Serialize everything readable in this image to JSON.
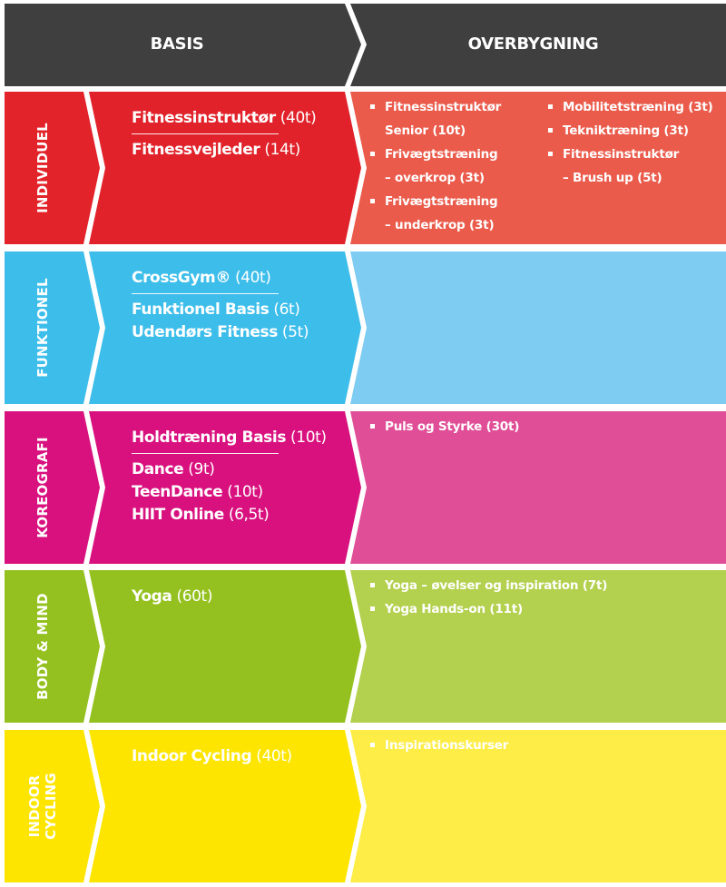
{
  "header": {
    "basis": "BASIS",
    "overbygning": "OVERBYGNING"
  },
  "colors": {
    "header_dark": "#3f3f3f",
    "individuel": [
      "#e2232a",
      "#e1222a",
      "#ea5b4b"
    ],
    "funktionel": [
      "#3dbeea",
      "#3dbdea",
      "#7fccf2"
    ],
    "koreografi": [
      "#d8117e",
      "#d8117e",
      "#e04e97"
    ],
    "body_mind": [
      "#94c11f",
      "#94c11f",
      "#b3d04e"
    ],
    "indoor_cycling": [
      "#fde500",
      "#fde500",
      "#fded46"
    ]
  },
  "rows": [
    {
      "id": "individuel",
      "label_lines": [
        "INDIVIDUEL"
      ],
      "basis": [
        {
          "name": "Fitnessinstruktør",
          "duration": " (40t)",
          "rule": true
        },
        {
          "name": "Fitnessvejleder",
          "duration": " (14t)"
        }
      ],
      "overbygning_col1": [
        [
          "Fitnessinstruktør",
          "Senior (10t)"
        ],
        [
          "Frivægtstræning",
          "– overkrop (3t)"
        ],
        [
          "Frivægtstræning",
          "– underkrop (3t)"
        ]
      ],
      "overbygning_col2": [
        [
          "Mobilitetstræning (3t)"
        ],
        [
          "Tekniktræning (3t)"
        ],
        [
          "Fitnessinstruktør",
          "– Brush up (5t)"
        ]
      ]
    },
    {
      "id": "funktionel",
      "label_lines": [
        "FUNKTIONEL"
      ],
      "basis": [
        {
          "name": "CrossGym®",
          "duration": " (40t)",
          "rule": true
        },
        {
          "name": "Funktionel Basis",
          "duration": " (6t)"
        },
        {
          "name": "Udendørs Fitness",
          "duration": " (5t)"
        }
      ],
      "overbygning_col1": [],
      "overbygning_col2": []
    },
    {
      "id": "koreografi",
      "label_lines": [
        "KOREOGRAFI"
      ],
      "basis": [
        {
          "name": "Holdtræning Basis",
          "duration": " (10t)",
          "rule": true
        },
        {
          "name": "Dance",
          "duration": " (9t)"
        },
        {
          "name": "TeenDance",
          "duration": " (10t)"
        },
        {
          "name": "HIIT Online",
          "duration": " (6,5t)"
        }
      ],
      "overbygning_col1": [
        [
          "Puls og Styrke (30t)"
        ]
      ],
      "overbygning_col2": []
    },
    {
      "id": "body_mind",
      "label_lines": [
        "BODY & MIND"
      ],
      "basis": [
        {
          "name": "Yoga",
          "duration": " (60t)"
        }
      ],
      "overbygning_col1": [
        [
          "Yoga – øvelser og inspiration (7t)"
        ],
        [
          "Yoga Hands-on (11t)"
        ]
      ],
      "overbygning_col2": []
    },
    {
      "id": "indoor_cycling",
      "label_lines": [
        "INDOOR",
        "CYCLING"
      ],
      "basis": [
        {
          "name": "Indoor Cycling",
          "duration": " (40t)"
        }
      ],
      "overbygning_col1": [
        [
          "Inspirationskurser"
        ]
      ],
      "overbygning_col2": []
    }
  ]
}
